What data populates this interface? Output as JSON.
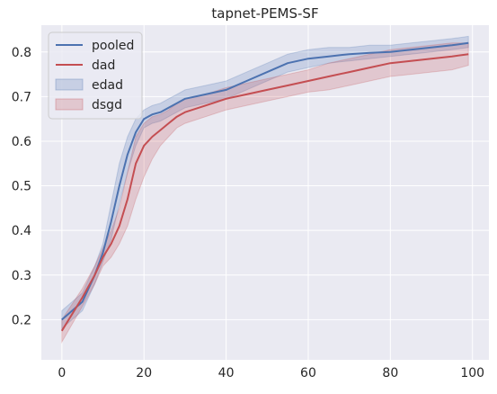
{
  "chart_data": {
    "type": "line",
    "title": "tapnet-PEMS-SF",
    "xlabel": "",
    "ylabel": "",
    "xlim": [
      -5,
      104
    ],
    "ylim": [
      0.11,
      0.86
    ],
    "x_ticks": [
      0,
      20,
      40,
      60,
      80,
      100
    ],
    "y_ticks": [
      0.2,
      0.3,
      0.4,
      0.5,
      0.6,
      0.7,
      0.8
    ],
    "grid": true,
    "legend_position": "top-left",
    "background": "#eaeaf2",
    "legend": [
      {
        "label": "pooled",
        "kind": "line",
        "color": "#4c72b0"
      },
      {
        "label": "dad",
        "kind": "line",
        "color": "#c44e52"
      },
      {
        "label": "edad",
        "kind": "band",
        "color": "#4c72b0"
      },
      {
        "label": "dsgd",
        "kind": "band",
        "color": "#c44e52"
      }
    ],
    "x": [
      0,
      5,
      8,
      10,
      12,
      14,
      16,
      18,
      20,
      22,
      24,
      26,
      28,
      30,
      35,
      40,
      45,
      50,
      55,
      60,
      65,
      70,
      75,
      80,
      85,
      90,
      95,
      99
    ],
    "series": [
      {
        "name": "pooled",
        "color": "#4c72b0",
        "values": [
          0.2,
          0.24,
          0.3,
          0.35,
          0.42,
          0.5,
          0.57,
          0.62,
          0.65,
          0.66,
          0.665,
          0.675,
          0.685,
          0.695,
          0.705,
          0.715,
          0.735,
          0.755,
          0.775,
          0.785,
          0.79,
          0.795,
          0.798,
          0.8,
          0.805,
          0.81,
          0.815,
          0.82
        ]
      },
      {
        "name": "dad",
        "color": "#c44e52",
        "values": [
          0.175,
          0.25,
          0.3,
          0.34,
          0.37,
          0.41,
          0.47,
          0.55,
          0.59,
          0.61,
          0.625,
          0.64,
          0.655,
          0.665,
          0.68,
          0.695,
          0.705,
          0.715,
          0.725,
          0.735,
          0.745,
          0.755,
          0.765,
          0.775,
          0.78,
          0.785,
          0.79,
          0.795
        ]
      },
      {
        "name": "edad",
        "color": "#4c72b0",
        "kind": "band",
        "lower": [
          0.18,
          0.22,
          0.28,
          0.33,
          0.38,
          0.46,
          0.53,
          0.59,
          0.63,
          0.64,
          0.645,
          0.655,
          0.665,
          0.675,
          0.685,
          0.695,
          0.715,
          0.735,
          0.755,
          0.765,
          0.775,
          0.78,
          0.785,
          0.79,
          0.795,
          0.8,
          0.805,
          0.81
        ],
        "upper": [
          0.22,
          0.26,
          0.32,
          0.37,
          0.46,
          0.55,
          0.61,
          0.65,
          0.67,
          0.68,
          0.685,
          0.695,
          0.705,
          0.715,
          0.725,
          0.735,
          0.755,
          0.775,
          0.795,
          0.805,
          0.81,
          0.81,
          0.815,
          0.815,
          0.82,
          0.825,
          0.83,
          0.835
        ]
      },
      {
        "name": "dsgd",
        "color": "#c44e52",
        "kind": "band",
        "lower": [
          0.15,
          0.23,
          0.28,
          0.32,
          0.34,
          0.37,
          0.41,
          0.47,
          0.52,
          0.56,
          0.59,
          0.61,
          0.63,
          0.64,
          0.655,
          0.67,
          0.68,
          0.69,
          0.7,
          0.71,
          0.715,
          0.725,
          0.735,
          0.745,
          0.75,
          0.755,
          0.76,
          0.77
        ],
        "upper": [
          0.2,
          0.27,
          0.32,
          0.36,
          0.4,
          0.45,
          0.53,
          0.61,
          0.64,
          0.655,
          0.66,
          0.67,
          0.685,
          0.695,
          0.705,
          0.72,
          0.73,
          0.74,
          0.75,
          0.76,
          0.775,
          0.785,
          0.795,
          0.805,
          0.81,
          0.815,
          0.82,
          0.82
        ]
      }
    ]
  }
}
